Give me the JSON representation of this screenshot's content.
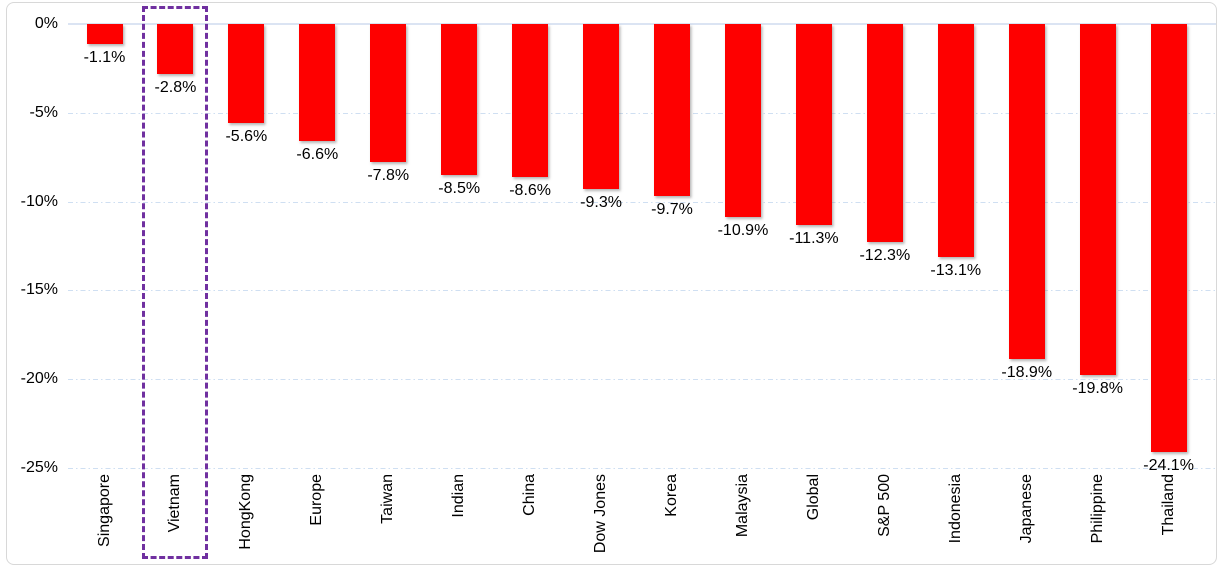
{
  "chart_data": {
    "type": "bar",
    "title": "",
    "xlabel": "",
    "ylabel": "",
    "categories": [
      "Singapore",
      "Vietnam",
      "HongKong",
      "Europe",
      "Taiwan",
      "Indian",
      "China",
      "Dow Jones",
      "Korea",
      "Malaysia",
      "Global",
      "S&P 500",
      "Indonesia",
      "Japanese",
      "Philippine",
      "Thailand"
    ],
    "values": [
      -1.1,
      -2.8,
      -5.6,
      -6.6,
      -7.8,
      -8.5,
      -8.6,
      -9.3,
      -9.7,
      -10.9,
      -11.3,
      -12.3,
      -13.1,
      -18.9,
      -19.8,
      -24.1
    ],
    "value_labels": [
      "-1.1%",
      "-2.8%",
      "-5.6%",
      "-6.6%",
      "-7.8%",
      "-8.5%",
      "-8.6%",
      "-9.3%",
      "-9.7%",
      "-10.9%",
      "-11.3%",
      "-12.3%",
      "-13.1%",
      "-18.9%",
      "-19.8%",
      "-24.1%"
    ],
    "yticks": [
      {
        "label": "0%",
        "value": 0
      },
      {
        "label": "-5%",
        "value": -5
      },
      {
        "label": "-10%",
        "value": -10
      },
      {
        "label": "-15%",
        "value": -15
      },
      {
        "label": "-20%",
        "value": -20
      },
      {
        "label": "-25%",
        "value": -25
      }
    ],
    "ylim": [
      -25,
      0
    ],
    "grid": "horizontal-dash-dot",
    "legend": "none",
    "highlighted_category": "Vietnam",
    "colors": {
      "bar": "#fe0000",
      "highlight_box": "#7030a0",
      "gridline": "#cfdff2",
      "zero_line": "#dbe4f3",
      "text": "#000000",
      "frame_border": "#d8d8d8"
    }
  }
}
